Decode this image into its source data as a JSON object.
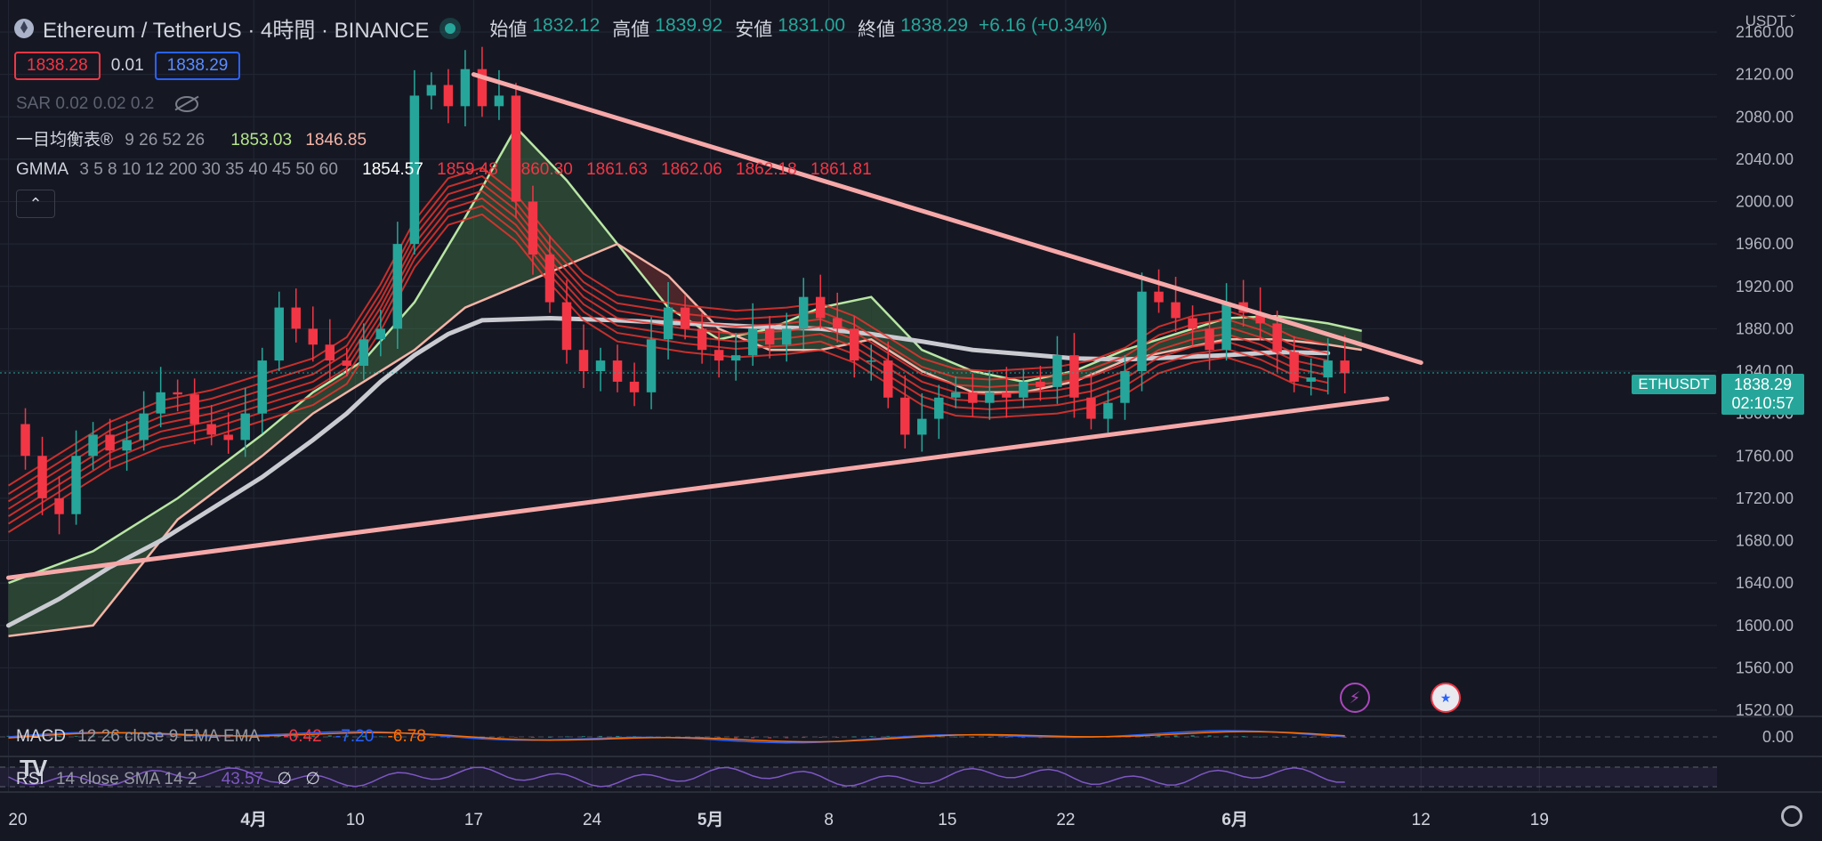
{
  "header": {
    "symbol": "Ethereum / TetherUS · 4時間 · BINANCE",
    "open_label": "始値",
    "open": "1832.12",
    "high_label": "高値",
    "high": "1839.92",
    "low_label": "安値",
    "low": "1831.00",
    "close_label": "終値",
    "close": "1838.29",
    "change": "+6.16 (+0.34%)"
  },
  "trade": {
    "sell": "1838.28",
    "spread": "0.01",
    "buy": "1838.29"
  },
  "indicators": {
    "sar_name": "SAR",
    "sar_params": "0.02 0.02 0.2",
    "ichimoku_name": "一目均衡表®",
    "ichimoku_params": "9 26 52 26",
    "ichimoku_v1": "1853.03",
    "ichimoku_v2": "1846.85",
    "gmma_name": "GMMA",
    "gmma_params": "3 5 8 10 12 200 30 35 40 45 50 60",
    "gmma_v1": "1854.57",
    "gmma_v2": "1859.48",
    "gmma_v3": "1860.30",
    "gmma_v4": "1861.63",
    "gmma_v5": "1862.06",
    "gmma_v6": "1862.18",
    "gmma_v7": "1861.81",
    "collapse_icon": "chevron-up-icon",
    "macd_name": "MACD",
    "macd_params": "12 26 close 9 EMA EMA",
    "macd_v1": "-0.42",
    "macd_v2": "-7.20",
    "macd_v3": "-6.78",
    "rsi_name": "RSI",
    "rsi_params": "14 close SMA 14 2",
    "rsi_v1": "43.57",
    "rsi_v2": "∅",
    "rsi_v3": "∅"
  },
  "price_scale": {
    "currency": "USDT",
    "last_symbol": "ETHUSDT",
    "last_price": "1838.29",
    "countdown": "02:10:57",
    "macd_zero": "0.00"
  },
  "colors": {
    "up": "#26a69a",
    "down": "#f23645",
    "trend": "#f7a8a8",
    "ma200": "#c9cbd1",
    "gmma": "#e8342e",
    "macd": "#2962ff",
    "signal": "#ff6d00",
    "rsi": "#7e57c2"
  },
  "chart_data": {
    "type": "line",
    "ylabel": "",
    "ylim": [
      1500,
      2180
    ],
    "yticks": [
      "2160.00",
      "2120.00",
      "2080.00",
      "2040.00",
      "2000.00",
      "1960.00",
      "1920.00",
      "1880.00",
      "1840.00",
      "1800.00",
      "1760.00",
      "1720.00",
      "1680.00",
      "1640.00",
      "1600.00",
      "1560.00",
      "1520.00"
    ],
    "xticks": [
      {
        "label": "20",
        "t": 0.0
      },
      {
        "label": "4月",
        "t": 14.5
      },
      {
        "label": "10",
        "t": 20.5
      },
      {
        "label": "17",
        "t": 27.5
      },
      {
        "label": "24",
        "t": 34.5
      },
      {
        "label": "5月",
        "t": 41.5
      },
      {
        "label": "8",
        "t": 48.5
      },
      {
        "label": "15",
        "t": 55.5
      },
      {
        "label": "22",
        "t": 62.5
      },
      {
        "label": "6月",
        "t": 72.5
      },
      {
        "label": "6",
        "t": 72.5
      },
      {
        "label": "12",
        "t": 83.5
      },
      {
        "label": "19",
        "t": 90.5
      }
    ],
    "xtick_labels_shown": [
      "20",
      "4月",
      "10",
      "17",
      "24",
      "5月",
      "8",
      "15",
      "22",
      "6月",
      "12",
      "19"
    ],
    "t_range": [
      -0.5,
      101
    ],
    "close": [
      [
        0,
        1790
      ],
      [
        1,
        1760
      ],
      [
        2,
        1720
      ],
      [
        3,
        1705
      ],
      [
        4,
        1760
      ],
      [
        5,
        1780
      ],
      [
        6,
        1765
      ],
      [
        7,
        1775
      ],
      [
        8,
        1800
      ],
      [
        9,
        1820
      ],
      [
        10,
        1818
      ],
      [
        11,
        1790
      ],
      [
        12,
        1780
      ],
      [
        13,
        1775
      ],
      [
        14,
        1800
      ],
      [
        15,
        1850
      ],
      [
        16,
        1900
      ],
      [
        17,
        1880
      ],
      [
        18,
        1865
      ],
      [
        19,
        1850
      ],
      [
        20,
        1845
      ],
      [
        21,
        1870
      ],
      [
        22,
        1880
      ],
      [
        23,
        1960
      ],
      [
        24,
        2100
      ],
      [
        25,
        2110
      ],
      [
        26,
        2090
      ],
      [
        27,
        2125
      ],
      [
        28,
        2090
      ],
      [
        29,
        2100
      ],
      [
        30,
        2000
      ],
      [
        31,
        1950
      ],
      [
        32,
        1905
      ],
      [
        33,
        1860
      ],
      [
        34,
        1840
      ],
      [
        35,
        1850
      ],
      [
        36,
        1830
      ],
      [
        37,
        1820
      ],
      [
        38,
        1870
      ],
      [
        39,
        1900
      ],
      [
        40,
        1880
      ],
      [
        41,
        1860
      ],
      [
        42,
        1850
      ],
      [
        43,
        1855
      ],
      [
        44,
        1880
      ],
      [
        45,
        1865
      ],
      [
        46,
        1880
      ],
      [
        47,
        1910
      ],
      [
        48,
        1890
      ],
      [
        49,
        1880
      ],
      [
        50,
        1850
      ],
      [
        51,
        1850
      ],
      [
        52,
        1815
      ],
      [
        53,
        1780
      ],
      [
        54,
        1795
      ],
      [
        55,
        1815
      ],
      [
        56,
        1820
      ],
      [
        57,
        1810
      ],
      [
        58,
        1820
      ],
      [
        59,
        1815
      ],
      [
        60,
        1830
      ],
      [
        61,
        1825
      ],
      [
        62,
        1855
      ],
      [
        63,
        1815
      ],
      [
        64,
        1795
      ],
      [
        65,
        1810
      ],
      [
        66,
        1840
      ],
      [
        67,
        1915
      ],
      [
        68,
        1905
      ],
      [
        69,
        1890
      ],
      [
        70,
        1880
      ],
      [
        71,
        1860
      ],
      [
        72,
        1905
      ],
      [
        73,
        1895
      ],
      [
        74,
        1885
      ],
      [
        75,
        1858
      ],
      [
        76,
        1830
      ],
      [
        77,
        1834
      ],
      [
        78,
        1850
      ],
      [
        79,
        1838
      ]
    ],
    "ma200": [
      [
        0,
        1600
      ],
      [
        3,
        1625
      ],
      [
        6,
        1655
      ],
      [
        9,
        1680
      ],
      [
        12,
        1710
      ],
      [
        15,
        1740
      ],
      [
        18,
        1775
      ],
      [
        20,
        1800
      ],
      [
        22,
        1830
      ],
      [
        24,
        1855
      ],
      [
        26,
        1875
      ],
      [
        28,
        1888
      ],
      [
        32,
        1890
      ],
      [
        36,
        1888
      ],
      [
        40,
        1885
      ],
      [
        44,
        1882
      ],
      [
        48,
        1880
      ],
      [
        51,
        1875
      ],
      [
        54,
        1868
      ],
      [
        57,
        1860
      ],
      [
        60,
        1856
      ],
      [
        63,
        1852
      ],
      [
        66,
        1851
      ],
      [
        69,
        1853
      ],
      [
        72,
        1855
      ],
      [
        75,
        1858
      ],
      [
        78,
        1857
      ]
    ],
    "gmma_center": [
      [
        0,
        1710
      ],
      [
        3,
        1740
      ],
      [
        6,
        1770
      ],
      [
        9,
        1790
      ],
      [
        12,
        1800
      ],
      [
        15,
        1815
      ],
      [
        18,
        1830
      ],
      [
        20,
        1850
      ],
      [
        22,
        1900
      ],
      [
        24,
        1960
      ],
      [
        26,
        2000
      ],
      [
        28,
        2010
      ],
      [
        30,
        1985
      ],
      [
        32,
        1945
      ],
      [
        34,
        1910
      ],
      [
        36,
        1890
      ],
      [
        38,
        1885
      ],
      [
        40,
        1880
      ],
      [
        43,
        1875
      ],
      [
        46,
        1878
      ],
      [
        48,
        1882
      ],
      [
        50,
        1870
      ],
      [
        52,
        1850
      ],
      [
        54,
        1830
      ],
      [
        56,
        1820
      ],
      [
        58,
        1818
      ],
      [
        60,
        1820
      ],
      [
        62,
        1822
      ],
      [
        64,
        1828
      ],
      [
        66,
        1840
      ],
      [
        68,
        1860
      ],
      [
        70,
        1870
      ],
      [
        72,
        1875
      ],
      [
        74,
        1865
      ],
      [
        76,
        1850
      ],
      [
        78,
        1843
      ]
    ],
    "ichimoku_span_a": [
      [
        0,
        1640
      ],
      [
        5,
        1670
      ],
      [
        10,
        1720
      ],
      [
        15,
        1780
      ],
      [
        18,
        1820
      ],
      [
        21,
        1850
      ],
      [
        24,
        1905
      ],
      [
        27,
        1985
      ],
      [
        30,
        2070
      ],
      [
        33,
        2020
      ],
      [
        36,
        1960
      ],
      [
        39,
        1900
      ],
      [
        42,
        1870
      ],
      [
        45,
        1880
      ],
      [
        48,
        1900
      ],
      [
        51,
        1910
      ],
      [
        54,
        1860
      ],
      [
        57,
        1840
      ],
      [
        60,
        1830
      ],
      [
        63,
        1840
      ],
      [
        66,
        1860
      ],
      [
        69,
        1875
      ],
      [
        72,
        1890
      ],
      [
        75,
        1892
      ],
      [
        78,
        1885
      ],
      [
        80,
        1878
      ]
    ],
    "ichimoku_span_b": [
      [
        0,
        1590
      ],
      [
        5,
        1600
      ],
      [
        10,
        1700
      ],
      [
        15,
        1760
      ],
      [
        18,
        1800
      ],
      [
        21,
        1830
      ],
      [
        24,
        1860
      ],
      [
        27,
        1900
      ],
      [
        30,
        1920
      ],
      [
        33,
        1940
      ],
      [
        36,
        1960
      ],
      [
        39,
        1930
      ],
      [
        42,
        1880
      ],
      [
        45,
        1860
      ],
      [
        48,
        1860
      ],
      [
        51,
        1870
      ],
      [
        54,
        1840
      ],
      [
        57,
        1820
      ],
      [
        60,
        1820
      ],
      [
        63,
        1830
      ],
      [
        66,
        1850
      ],
      [
        69,
        1860
      ],
      [
        72,
        1870
      ],
      [
        75,
        1870
      ],
      [
        78,
        1865
      ],
      [
        80,
        1860
      ]
    ],
    "trendline_upper": [
      [
        27.5,
        2120
      ],
      [
        83.5,
        1848
      ]
    ],
    "trendline_lower": [
      [
        0,
        1645
      ],
      [
        81.5,
        1814
      ]
    ],
    "macd_zero": 0,
    "rsi_band": [
      30,
      70
    ]
  }
}
